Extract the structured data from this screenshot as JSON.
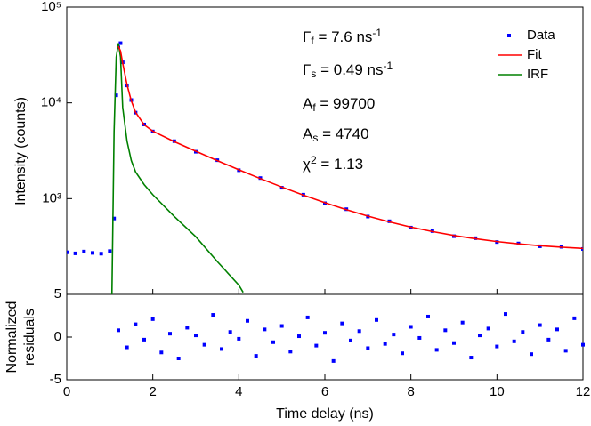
{
  "chart_data": [
    {
      "type": "scatter-line",
      "ylabel": "Intensity (counts)",
      "ylog": true,
      "xlim": [
        0,
        12
      ],
      "ylim": [
        100,
        100000
      ],
      "yticks": [
        {
          "value": 1000,
          "label": "10³"
        },
        {
          "value": 10000,
          "label": "10⁴"
        },
        {
          "value": 100000,
          "label": "10⁵"
        }
      ],
      "legend": "upper right",
      "annotations": [
        [
          "Γ",
          {
            "sub": "f"
          },
          " = 7.6 ns",
          {
            "sup": "-1"
          }
        ],
        [
          "Γ",
          {
            "sub": "s"
          },
          " = 0.49 ns",
          {
            "sup": "-1"
          }
        ],
        [
          "A",
          {
            "sub": "f"
          },
          " = 99700"
        ],
        [
          "A",
          {
            "sub": "s"
          },
          " = 4740"
        ],
        [
          "χ",
          {
            "sup": "2"
          },
          " = 1.13"
        ]
      ],
      "series": [
        {
          "name": "Data",
          "color": "#0000ff",
          "style": "points",
          "x": [
            0,
            0.2,
            0.4,
            0.6,
            0.8,
            1.0,
            1.1,
            1.15,
            1.2,
            1.25,
            1.3,
            1.4,
            1.5,
            1.6,
            1.8,
            2,
            2.5,
            3,
            3.5,
            4,
            4.5,
            5,
            5.5,
            6,
            6.5,
            7,
            7.5,
            8,
            8.5,
            9,
            9.5,
            10,
            10.5,
            11,
            11.5,
            12
          ],
          "values": [
            275,
            268,
            280,
            271,
            266,
            283,
            620,
            12000,
            38000,
            42000,
            26500,
            15200,
            10700,
            7900,
            5950,
            5030,
            3980,
            3090,
            2520,
            1980,
            1640,
            1300,
            1100,
            895,
            775,
            650,
            580,
            498,
            458,
            405,
            386,
            352,
            340,
            318,
            314,
            298
          ]
        },
        {
          "name": "Fit",
          "color": "#ff0000",
          "style": "line",
          "x": [
            1.2,
            1.25,
            1.3,
            1.4,
            1.5,
            1.6,
            1.8,
            2,
            2.5,
            3,
            3.5,
            4,
            4.5,
            5,
            5.5,
            6,
            6.5,
            7,
            7.5,
            8,
            8.5,
            9,
            9.5,
            10,
            10.5,
            11,
            11.5,
            12
          ],
          "values": [
            39000,
            34750,
            26000,
            15540,
            10490,
            7970,
            5900,
            5070,
            3940,
            3126,
            2494,
            2002,
            1619,
            1321,
            1088,
            907,
            766,
            657,
            571,
            504,
            453,
            412,
            381,
            356,
            337,
            322,
            311,
            302
          ]
        },
        {
          "name": "IRF",
          "color": "#008000",
          "style": "line",
          "x": [
            1.05,
            1.1,
            1.15,
            1.2,
            1.25,
            1.3,
            1.4,
            1.5,
            1.6,
            1.8,
            2,
            2.5,
            3,
            3.5,
            4,
            4.1
          ],
          "values": [
            100,
            5000,
            30000,
            42000,
            30000,
            9000,
            4000,
            2500,
            1900,
            1400,
            1100,
            650,
            400,
            220,
            125,
            105
          ]
        }
      ]
    },
    {
      "type": "scatter",
      "ylabel": [
        "Normalized",
        "residuals"
      ],
      "xlabel": "Time delay (ns)",
      "xlim": [
        0,
        12
      ],
      "xticks": [
        0,
        2,
        4,
        6,
        8,
        10,
        12
      ],
      "ylim": [
        -5,
        5
      ],
      "yticks": [
        -5,
        0,
        5
      ],
      "color": "#0000ff",
      "x": [
        1.2,
        1.4,
        1.6,
        1.8,
        2,
        2.2,
        2.4,
        2.6,
        2.8,
        3,
        3.2,
        3.4,
        3.6,
        3.8,
        4,
        4.2,
        4.4,
        4.6,
        4.8,
        5,
        5.2,
        5.4,
        5.6,
        5.8,
        6,
        6.2,
        6.4,
        6.6,
        6.8,
        7,
        7.2,
        7.4,
        7.6,
        7.8,
        8,
        8.2,
        8.4,
        8.6,
        8.8,
        9,
        9.2,
        9.4,
        9.6,
        9.8,
        10,
        10.2,
        10.4,
        10.6,
        10.8,
        11,
        11.2,
        11.4,
        11.6,
        11.8,
        12
      ],
      "values": [
        0.8,
        -1.2,
        1.5,
        -0.3,
        2.1,
        -1.8,
        0.4,
        -2.5,
        1.1,
        0.2,
        -0.9,
        2.6,
        -1.4,
        0.6,
        -0.2,
        1.9,
        -2.2,
        0.9,
        -0.6,
        1.3,
        -1.7,
        0.1,
        2.3,
        -1.0,
        0.5,
        -2.8,
        1.6,
        -0.4,
        0.7,
        -1.3,
        2.0,
        -0.8,
        0.3,
        -1.9,
        1.2,
        -0.1,
        2.4,
        -1.5,
        0.8,
        -0.7,
        1.7,
        -2.4,
        0.2,
        1.0,
        -1.1,
        2.7,
        -0.5,
        0.6,
        -2.0,
        1.4,
        -0.3,
        0.9,
        -1.6,
        2.2,
        -0.9
      ]
    }
  ]
}
